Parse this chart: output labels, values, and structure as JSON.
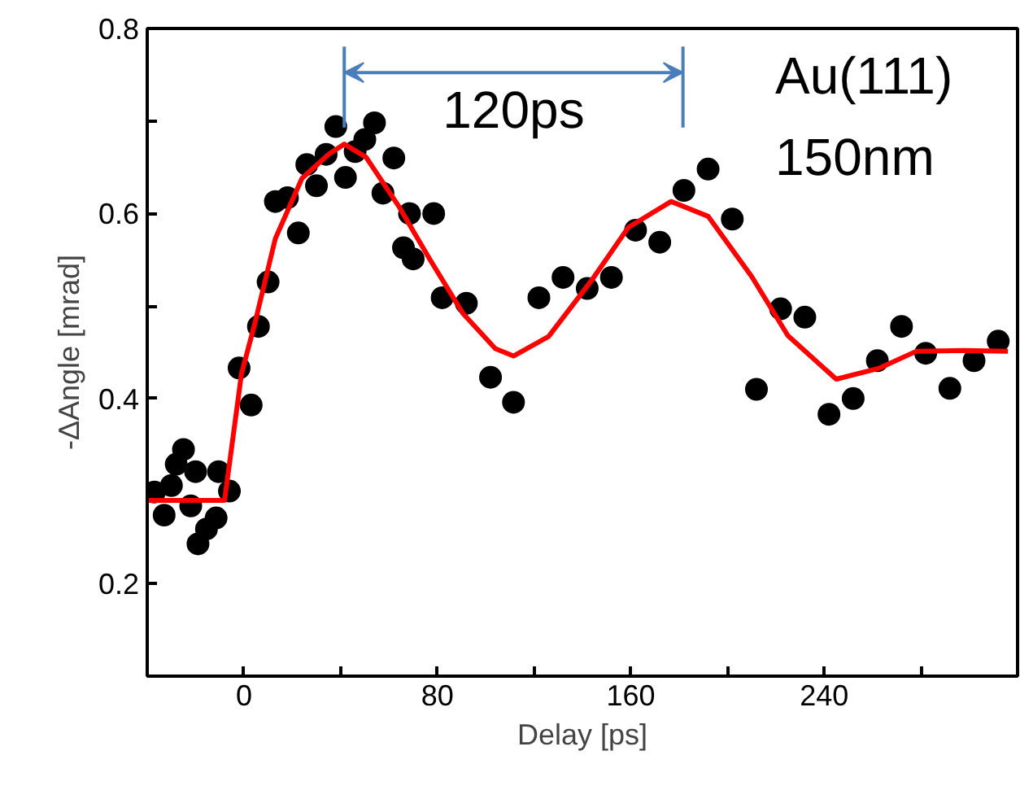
{
  "chart_data": {
    "type": "scatter",
    "xlabel": "Delay [ps]",
    "ylabel": "-ΔAngle [mrad]",
    "xlim": [
      -40,
      320
    ],
    "ylim": [
      0.1,
      0.8
    ],
    "xticks": [
      {
        "value": -40,
        "label": null
      },
      0,
      {
        "value": 40,
        "label": null
      },
      80,
      {
        "value": 120,
        "label": null
      },
      160,
      {
        "value": 200,
        "label": null
      },
      240,
      {
        "value": 280,
        "label": null
      }
    ],
    "yticks": [
      0.2,
      {
        "value": 0.3,
        "label": null
      },
      0.4,
      {
        "value": 0.5,
        "label": null
      },
      0.6,
      {
        "value": 0.7,
        "label": null
      },
      0.8
    ],
    "grid": false,
    "series": [
      {
        "color": "#000000",
        "marker": "circle",
        "x": [
          -37,
          -33,
          -30,
          -28,
          -25,
          -22,
          -20,
          -19,
          -15.5,
          -11.5,
          -10.5,
          -6,
          -2,
          3,
          6,
          10,
          13,
          18,
          22.5,
          26,
          30,
          34,
          38,
          42,
          46,
          50,
          54,
          57.5,
          62,
          66,
          68.5,
          70,
          78.5,
          82,
          92,
          102,
          111.5,
          122,
          132,
          142,
          152,
          162,
          172,
          182,
          192,
          202,
          212,
          222,
          232,
          242,
          252,
          262,
          272,
          282,
          292,
          302,
          312
        ],
        "values": [
          0.299,
          0.274,
          0.306,
          0.329,
          0.345,
          0.284,
          0.321,
          0.243,
          0.259,
          0.271,
          0.321,
          0.3,
          0.433,
          0.393,
          0.478,
          0.526,
          0.613,
          0.617,
          0.579,
          0.653,
          0.63,
          0.664,
          0.694,
          0.639,
          0.667,
          0.68,
          0.698,
          0.622,
          0.66,
          0.563,
          0.6,
          0.551,
          0.6,
          0.509,
          0.503,
          0.423,
          0.396,
          0.509,
          0.531,
          0.519,
          0.531,
          0.582,
          0.569,
          0.625,
          0.648,
          0.594,
          0.41,
          0.497,
          0.488,
          0.383,
          0.4,
          0.441,
          0.478,
          0.449,
          0.411,
          0.441,
          0.462
        ]
      },
      {
        "type": "line",
        "marker": "none",
        "color": "#ff0000",
        "x": [
          -40,
          -8,
          -1,
          4.4,
          13,
          24,
          35,
          41.5,
          50.5,
          64,
          77,
          90.6,
          104,
          111.5,
          126,
          143.6,
          159,
          176.7,
          192,
          210,
          225,
          245,
          263,
          278,
          298,
          316
        ],
        "values": [
          0.29,
          0.29,
          0.427,
          0.48,
          0.573,
          0.638,
          0.664,
          0.675,
          0.661,
          0.608,
          0.55,
          0.492,
          0.454,
          0.446,
          0.467,
          0.527,
          0.585,
          0.613,
          0.597,
          0.532,
          0.468,
          0.421,
          0.433,
          0.451,
          0.452,
          0.451
        ]
      }
    ],
    "ref_lines": [
      {
        "axis": "x",
        "value": 41.5,
        "color": "#4a7ebb"
      },
      {
        "axis": "x",
        "value": 181.6,
        "color": "#4a7ebb"
      }
    ],
    "annotations": [
      "120ps",
      "Au(111)",
      "150nm"
    ]
  }
}
